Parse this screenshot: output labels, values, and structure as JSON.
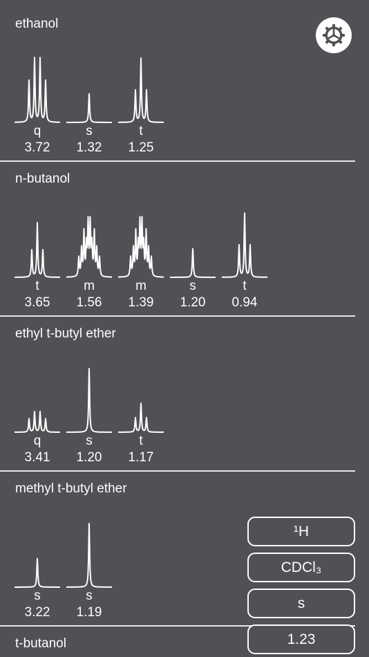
{
  "compounds": [
    {
      "name": "ethanol",
      "peaks": [
        {
          "mult": "q",
          "shift": "3.72",
          "height": 1.0
        },
        {
          "mult": "s",
          "shift": "1.32",
          "height": 0.45
        },
        {
          "mult": "t",
          "shift": "1.25",
          "height": 1.0
        }
      ]
    },
    {
      "name": "n-butanol",
      "peaks": [
        {
          "mult": "t",
          "shift": "3.65",
          "height": 0.85
        },
        {
          "mult": "m",
          "shift": "1.56",
          "height": 0.85
        },
        {
          "mult": "m",
          "shift": "1.39",
          "height": 0.85
        },
        {
          "mult": "s",
          "shift": "1.20",
          "height": 0.45
        },
        {
          "mult": "t",
          "shift": "0.94",
          "height": 1.0
        }
      ]
    },
    {
      "name": "ethyl t-butyl ether",
      "peaks": [
        {
          "mult": "q",
          "shift": "3.41",
          "height": 0.32
        },
        {
          "mult": "s",
          "shift": "1.20",
          "height": 1.0
        },
        {
          "mult": "t",
          "shift": "1.17",
          "height": 0.45
        }
      ]
    },
    {
      "name": "methyl t-butyl ether",
      "peaks": [
        {
          "mult": "s",
          "shift": "3.22",
          "height": 0.45
        },
        {
          "mult": "s",
          "shift": "1.19",
          "height": 1.0
        }
      ]
    },
    {
      "name": "t-butanol",
      "peaks": []
    }
  ],
  "filters": {
    "nucleus": "¹H",
    "solvent": "CDCl₃",
    "multiplicity": "s",
    "shift": "1.23"
  },
  "icons": {
    "settings": "gear-icon"
  },
  "colors": {
    "background": "#505055",
    "foreground": "#ffffff"
  }
}
